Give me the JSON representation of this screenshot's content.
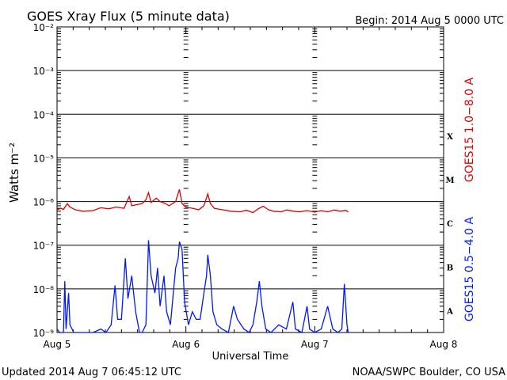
{
  "header": {
    "title": "GOES Xray Flux (5 minute data)",
    "begin": "Begin:  2014 Aug 5 0000 UTC"
  },
  "footer": {
    "updated": "Updated 2014 Aug  7 06:45:12 UTC",
    "source": "NOAA/SWPC Boulder, CO USA"
  },
  "chart_data": {
    "type": "line",
    "xlabel": "Universal Time",
    "ylabel": "Watts m⁻²",
    "y_scale": "log",
    "ylim": [
      1e-09,
      0.01
    ],
    "xlim_days": [
      0,
      3
    ],
    "x_ticks": [
      {
        "day": 0,
        "label": "Aug 5"
      },
      {
        "day": 1,
        "label": "Aug 6"
      },
      {
        "day": 2,
        "label": "Aug 7"
      },
      {
        "day": 3,
        "label": "Aug 8"
      }
    ],
    "y_ticks": [
      {
        "exp": -2,
        "label": "10⁻²"
      },
      {
        "exp": -3,
        "label": "10⁻³"
      },
      {
        "exp": -4,
        "label": "10⁻⁴"
      },
      {
        "exp": -5,
        "label": "10⁻⁵"
      },
      {
        "exp": -6,
        "label": "10⁻⁶"
      },
      {
        "exp": -7,
        "label": "10⁻⁷"
      },
      {
        "exp": -8,
        "label": "10⁻⁸"
      },
      {
        "exp": -9,
        "label": "10⁻⁹"
      }
    ],
    "flare_classes": [
      {
        "label": "X",
        "exp": -4
      },
      {
        "label": "M",
        "exp": -5
      },
      {
        "label": "C",
        "exp": -6
      },
      {
        "label": "B",
        "exp": -7
      },
      {
        "label": "A",
        "exp": -8
      }
    ],
    "grid": "horizontal decades",
    "legend_position": "right (rotated)",
    "series": [
      {
        "name": "GOES15 1.0−8.0 A",
        "color": "#e00000",
        "points": [
          [
            0.0,
            6.5e-07
          ],
          [
            0.03,
            7e-07
          ],
          [
            0.05,
            6.6e-07
          ],
          [
            0.08,
            9e-07
          ],
          [
            0.1,
            7.5e-07
          ],
          [
            0.14,
            6.5e-07
          ],
          [
            0.2,
            6e-07
          ],
          [
            0.28,
            6.2e-07
          ],
          [
            0.34,
            7.2e-07
          ],
          [
            0.4,
            6.8e-07
          ],
          [
            0.46,
            7.5e-07
          ],
          [
            0.52,
            7e-07
          ],
          [
            0.56,
            1.3e-06
          ],
          [
            0.58,
            8e-07
          ],
          [
            0.62,
            8.5e-07
          ],
          [
            0.66,
            9e-07
          ],
          [
            0.69,
            1.1e-06
          ],
          [
            0.71,
            1.6e-06
          ],
          [
            0.73,
            9.5e-07
          ],
          [
            0.77,
            1.2e-06
          ],
          [
            0.8,
            1e-06
          ],
          [
            0.84,
            9e-07
          ],
          [
            0.87,
            8e-07
          ],
          [
            0.92,
            1e-06
          ],
          [
            0.95,
            1.9e-06
          ],
          [
            0.97,
            9e-07
          ],
          [
            1.0,
            7.5e-07
          ],
          [
            1.05,
            7e-07
          ],
          [
            1.1,
            6.5e-07
          ],
          [
            1.14,
            8e-07
          ],
          [
            1.17,
            1.5e-06
          ],
          [
            1.19,
            9e-07
          ],
          [
            1.22,
            7e-07
          ],
          [
            1.28,
            6.5e-07
          ],
          [
            1.35,
            6e-07
          ],
          [
            1.42,
            5.8e-07
          ],
          [
            1.47,
            6.3e-07
          ],
          [
            1.52,
            5.6e-07
          ],
          [
            1.56,
            6.8e-07
          ],
          [
            1.6,
            7.8e-07
          ],
          [
            1.64,
            6.5e-07
          ],
          [
            1.68,
            6e-07
          ],
          [
            1.74,
            5.8e-07
          ],
          [
            1.78,
            6.4e-07
          ],
          [
            1.84,
            6e-07
          ],
          [
            1.88,
            5.8e-07
          ],
          [
            1.94,
            6.2e-07
          ],
          [
            2.0,
            5.7e-07
          ],
          [
            2.05,
            6.2e-07
          ],
          [
            2.1,
            5.8e-07
          ],
          [
            2.15,
            6.4e-07
          ],
          [
            2.2,
            6e-07
          ],
          [
            2.24,
            6.3e-07
          ],
          [
            2.26,
            5.7e-07
          ]
        ]
      },
      {
        "name": "GOES15 0.5−4.0 A",
        "color": "#0018ff",
        "points": [
          [
            0.0,
            1.2e-09
          ],
          [
            0.02,
            1e-09
          ],
          [
            0.05,
            1e-09
          ],
          [
            0.06,
            1.5e-08
          ],
          [
            0.07,
            1.2e-09
          ],
          [
            0.09,
            8e-09
          ],
          [
            0.1,
            1.5e-09
          ],
          [
            0.13,
            1e-09
          ],
          [
            0.2,
            1e-09
          ],
          [
            0.28,
            1e-09
          ],
          [
            0.34,
            1.2e-09
          ],
          [
            0.38,
            1e-09
          ],
          [
            0.42,
            1.5e-09
          ],
          [
            0.45,
            1.2e-08
          ],
          [
            0.47,
            2e-09
          ],
          [
            0.5,
            2e-09
          ],
          [
            0.53,
            5e-08
          ],
          [
            0.55,
            6e-09
          ],
          [
            0.58,
            2e-08
          ],
          [
            0.61,
            3e-09
          ],
          [
            0.64,
            1e-09
          ],
          [
            0.66,
            1e-09
          ],
          [
            0.69,
            1.5e-09
          ],
          [
            0.71,
            1.3e-07
          ],
          [
            0.73,
            2e-08
          ],
          [
            0.76,
            8e-09
          ],
          [
            0.78,
            3e-08
          ],
          [
            0.8,
            4e-09
          ],
          [
            0.83,
            2e-08
          ],
          [
            0.85,
            3e-09
          ],
          [
            0.88,
            1.5e-09
          ],
          [
            0.92,
            3e-08
          ],
          [
            0.94,
            5e-08
          ],
          [
            0.95,
            1.2e-07
          ],
          [
            0.97,
            8e-08
          ],
          [
            0.99,
            5e-09
          ],
          [
            1.02,
            1.5e-09
          ],
          [
            1.05,
            3e-09
          ],
          [
            1.08,
            2e-09
          ],
          [
            1.11,
            2e-09
          ],
          [
            1.14,
            8e-09
          ],
          [
            1.16,
            2e-08
          ],
          [
            1.17,
            6e-08
          ],
          [
            1.19,
            2e-08
          ],
          [
            1.21,
            3e-09
          ],
          [
            1.24,
            1.5e-09
          ],
          [
            1.28,
            1.2e-09
          ],
          [
            1.33,
            1e-09
          ],
          [
            1.37,
            4e-09
          ],
          [
            1.4,
            2e-09
          ],
          [
            1.45,
            1.2e-09
          ],
          [
            1.49,
            1e-09
          ],
          [
            1.52,
            1.5e-09
          ],
          [
            1.55,
            5e-09
          ],
          [
            1.57,
            1.5e-08
          ],
          [
            1.59,
            4e-09
          ],
          [
            1.62,
            1.2e-09
          ],
          [
            1.66,
            1e-09
          ],
          [
            1.72,
            1.5e-09
          ],
          [
            1.78,
            1.2e-09
          ],
          [
            1.83,
            5e-09
          ],
          [
            1.85,
            1.2e-09
          ],
          [
            1.9,
            1e-09
          ],
          [
            1.94,
            4e-09
          ],
          [
            1.96,
            1.2e-09
          ],
          [
            2.0,
            1e-09
          ],
          [
            2.05,
            1.2e-09
          ],
          [
            2.1,
            4e-09
          ],
          [
            2.14,
            1.2e-09
          ],
          [
            2.18,
            1e-09
          ],
          [
            2.21,
            1.2e-09
          ],
          [
            2.23,
            1.3e-08
          ],
          [
            2.25,
            1.5e-09
          ],
          [
            2.26,
            1e-09
          ]
        ]
      }
    ]
  }
}
